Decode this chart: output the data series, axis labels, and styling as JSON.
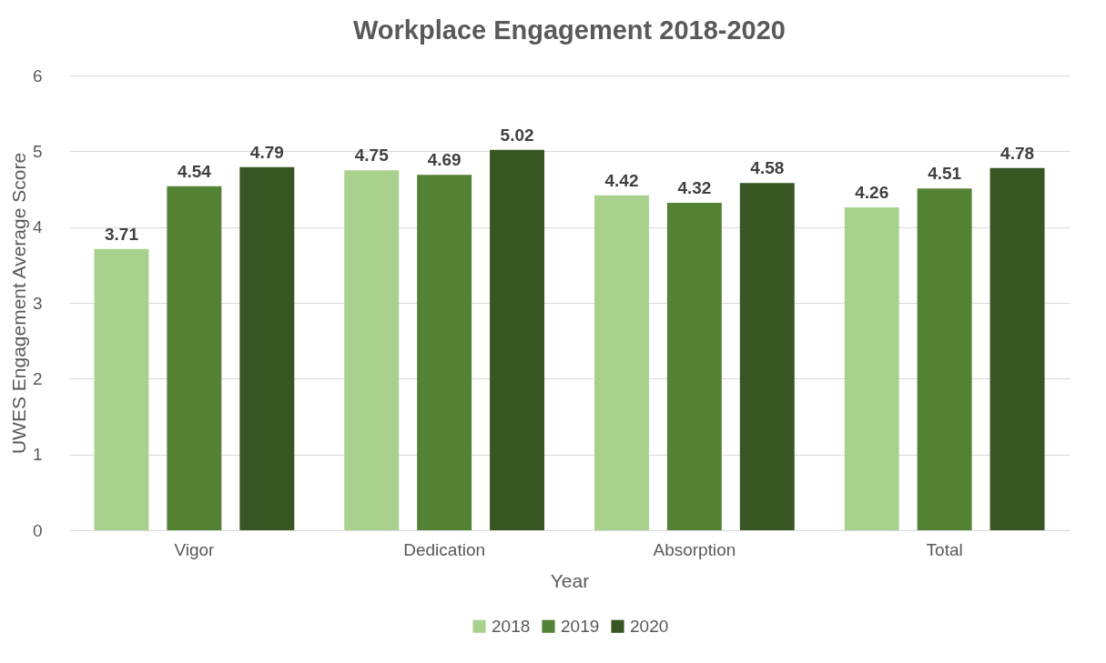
{
  "chart_data": {
    "type": "bar",
    "title": "Workplace Engagement  2018-2020",
    "xlabel": "Year",
    "ylabel": "UWES Engagement Average Score",
    "categories": [
      "Vigor",
      "Dedication",
      "Absorption",
      "Total"
    ],
    "series": [
      {
        "name": "2018",
        "color": "#a9d18e",
        "values": [
          3.71,
          4.75,
          4.42,
          4.26
        ]
      },
      {
        "name": "2019",
        "color": "#548235",
        "values": [
          4.54,
          4.69,
          4.32,
          4.51
        ]
      },
      {
        "name": "2020",
        "color": "#375623",
        "values": [
          4.79,
          5.02,
          4.58,
          4.78
        ]
      }
    ],
    "ylim": [
      0,
      6
    ],
    "yticks": [
      0,
      1,
      2,
      3,
      4,
      5,
      6
    ],
    "grid": "y",
    "legend": "bottom",
    "data_labels": true
  }
}
